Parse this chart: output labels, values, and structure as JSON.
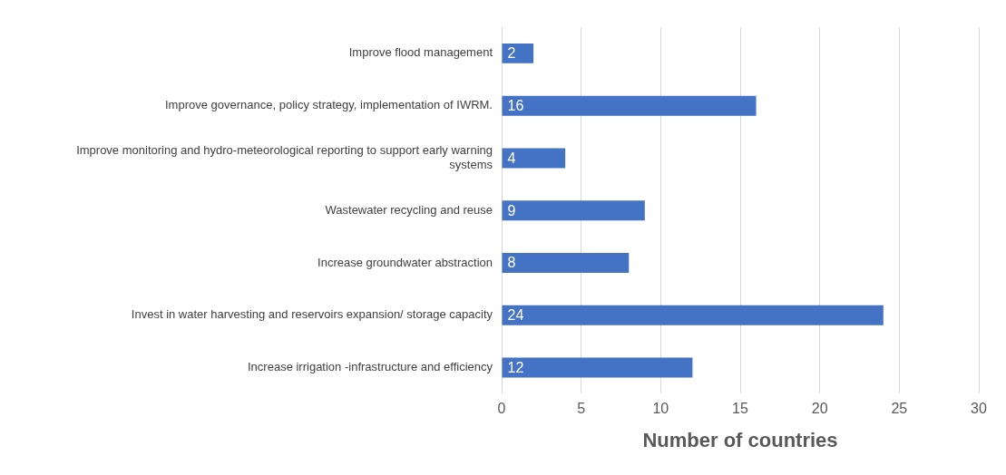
{
  "chart_data": {
    "type": "bar",
    "orientation": "horizontal",
    "categories": [
      "Improve flood management",
      "Improve governance, policy strategy, implementation of IWRM.",
      "Improve monitoring and hydro-meteorological reporting to support early warning systems",
      "Wastewater recycling and reuse",
      "Increase groundwater abstraction",
      "Invest in water harvesting and reservoirs expansion/ storage capacity",
      "Increase irrigation -infrastructure and efficiency"
    ],
    "values": [
      2,
      16,
      4,
      9,
      8,
      24,
      12
    ],
    "color": "#4472c4",
    "xlim": [
      0,
      30
    ],
    "xticks": [
      0,
      5,
      10,
      15,
      20,
      25,
      30
    ],
    "xlabel": "Number of countries",
    "grid": "x",
    "data_labels": true,
    "legend": false
  }
}
